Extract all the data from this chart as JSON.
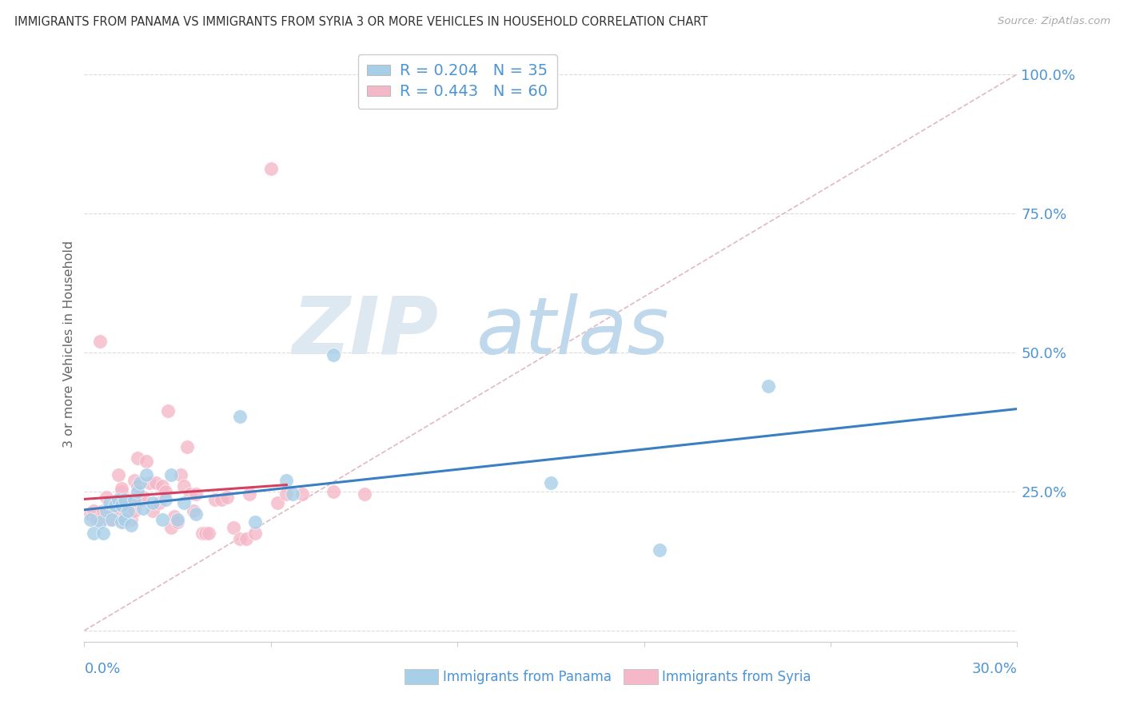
{
  "title": "IMMIGRANTS FROM PANAMA VS IMMIGRANTS FROM SYRIA 3 OR MORE VEHICLES IN HOUSEHOLD CORRELATION CHART",
  "source": "Source: ZipAtlas.com",
  "ylabel": "3 or more Vehicles in Household",
  "xlim": [
    0.0,
    0.3
  ],
  "ylim": [
    -0.02,
    1.05
  ],
  "yticks": [
    0.0,
    0.25,
    0.5,
    0.75,
    1.0
  ],
  "ytick_labels": [
    "",
    "25.0%",
    "50.0%",
    "75.0%",
    "100.0%"
  ],
  "xticks": [
    0.0,
    0.06,
    0.12,
    0.18,
    0.24,
    0.3
  ],
  "panama_R": 0.204,
  "panama_N": 35,
  "syria_R": 0.443,
  "syria_N": 60,
  "panama_color": "#a8cfe8",
  "syria_color": "#f5b8c8",
  "panama_trend_color": "#3a7fc1",
  "syria_trend_color": "#d44060",
  "diagonal_color": "#e0b0b8",
  "grid_color": "#cccccc",
  "title_color": "#333333",
  "axis_label_color": "#4d94d4",
  "watermark_zip_color": "#dde8f0",
  "watermark_atlas_color": "#c0d8ec",
  "panama_x": [
    0.005,
    0.002,
    0.003,
    0.006,
    0.007,
    0.008,
    0.009,
    0.01,
    0.011,
    0.012,
    0.012,
    0.013,
    0.013,
    0.014,
    0.015,
    0.016,
    0.017,
    0.018,
    0.019,
    0.02,
    0.022,
    0.025,
    0.026,
    0.028,
    0.03,
    0.032,
    0.036,
    0.05,
    0.055,
    0.065,
    0.067,
    0.08,
    0.15,
    0.185,
    0.22
  ],
  "panama_y": [
    0.195,
    0.2,
    0.175,
    0.175,
    0.215,
    0.23,
    0.2,
    0.225,
    0.235,
    0.195,
    0.225,
    0.235,
    0.2,
    0.215,
    0.19,
    0.235,
    0.25,
    0.265,
    0.22,
    0.28,
    0.23,
    0.2,
    0.235,
    0.28,
    0.2,
    0.23,
    0.21,
    0.385,
    0.195,
    0.27,
    0.245,
    0.495,
    0.265,
    0.145,
    0.44
  ],
  "syria_x": [
    0.002,
    0.003,
    0.004,
    0.005,
    0.006,
    0.007,
    0.008,
    0.008,
    0.009,
    0.01,
    0.01,
    0.011,
    0.011,
    0.012,
    0.012,
    0.013,
    0.013,
    0.014,
    0.015,
    0.015,
    0.016,
    0.016,
    0.017,
    0.017,
    0.018,
    0.019,
    0.02,
    0.021,
    0.022,
    0.023,
    0.024,
    0.025,
    0.026,
    0.027,
    0.028,
    0.029,
    0.03,
    0.031,
    0.032,
    0.033,
    0.034,
    0.035,
    0.036,
    0.038,
    0.039,
    0.04,
    0.042,
    0.044,
    0.046,
    0.048,
    0.05,
    0.052,
    0.053,
    0.055,
    0.06,
    0.062,
    0.065,
    0.07,
    0.08,
    0.09
  ],
  "syria_y": [
    0.21,
    0.215,
    0.2,
    0.52,
    0.215,
    0.24,
    0.2,
    0.22,
    0.225,
    0.215,
    0.23,
    0.22,
    0.28,
    0.25,
    0.255,
    0.195,
    0.205,
    0.225,
    0.235,
    0.2,
    0.215,
    0.27,
    0.26,
    0.31,
    0.235,
    0.24,
    0.305,
    0.265,
    0.215,
    0.265,
    0.23,
    0.26,
    0.25,
    0.395,
    0.185,
    0.205,
    0.195,
    0.28,
    0.26,
    0.33,
    0.245,
    0.215,
    0.245,
    0.175,
    0.175,
    0.175,
    0.235,
    0.235,
    0.24,
    0.185,
    0.165,
    0.165,
    0.245,
    0.175,
    0.83,
    0.23,
    0.245,
    0.245,
    0.25,
    0.245
  ],
  "syria_trend_xrange": [
    0.0,
    0.065
  ],
  "panama_trend_xrange": [
    0.0,
    0.3
  ]
}
